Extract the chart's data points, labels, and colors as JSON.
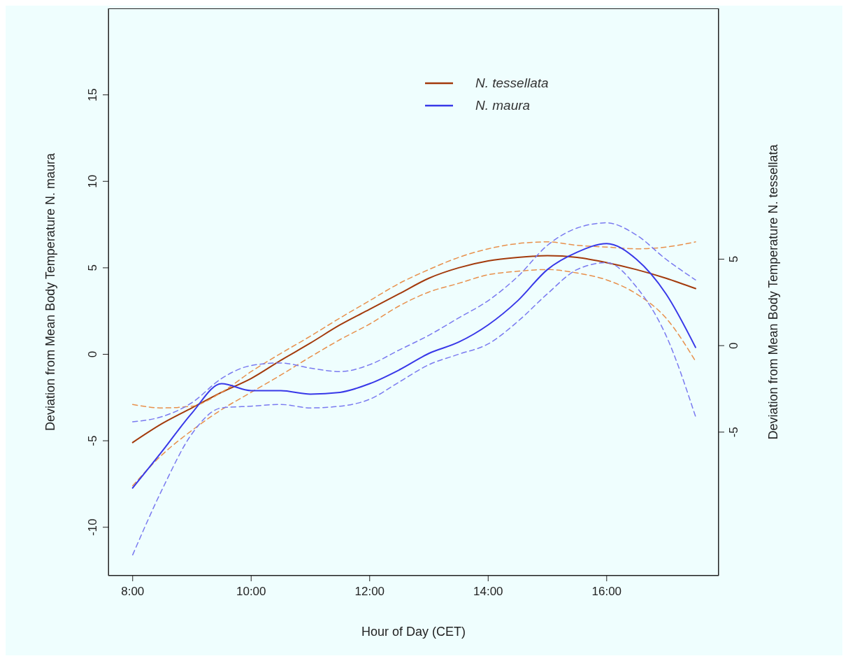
{
  "chart_data": {
    "type": "line",
    "xlabel": "Hour of Day (CET)",
    "ylabel": "Deviation from Mean Body Temperature N. maura",
    "y2label": "Deviation from Mean Body Temperature N. tessellata",
    "x": [
      8,
      8.5,
      9,
      9.5,
      10,
      10.5,
      11,
      11.5,
      12,
      12.5,
      13,
      13.5,
      14,
      14.5,
      15,
      15.5,
      16,
      16.5,
      17,
      17.5
    ],
    "series": [
      {
        "name": "N. tessellata",
        "color": "#a33a0c",
        "axis": "y2",
        "values": [
          -5.6,
          -4.5,
          -3.6,
          -2.7,
          -1.9,
          -0.85,
          0.15,
          1.2,
          2.1,
          3.0,
          3.9,
          4.5,
          4.9,
          5.1,
          5.2,
          5.1,
          4.8,
          4.4,
          3.9,
          3.3
        ]
      },
      {
        "color": "#e8904c",
        "axis": "y2",
        "line_style": "dashed",
        "values": [
          -3.4,
          -3.6,
          -3.5,
          -2.7,
          -1.5,
          -0.45,
          0.55,
          1.6,
          2.6,
          3.6,
          4.4,
          5.1,
          5.6,
          5.9,
          6.0,
          5.8,
          5.7,
          5.6,
          5.7,
          6.0
        ]
      },
      {
        "color": "#e8904c",
        "axis": "y2",
        "line_style": "dashed",
        "values": [
          -8.1,
          -6.3,
          -4.9,
          -3.7,
          -2.7,
          -1.7,
          -0.65,
          0.35,
          1.25,
          2.3,
          3.1,
          3.6,
          4.1,
          4.3,
          4.4,
          4.2,
          3.8,
          3.0,
          1.6,
          -0.9
        ]
      },
      {
        "name": "N. maura",
        "color": "#3838e8",
        "values": [
          -7.73,
          -5.6,
          -3.4,
          -1.7,
          -2.1,
          -2.1,
          -2.3,
          -2.2,
          -1.7,
          -0.9,
          0.05,
          0.7,
          1.7,
          3.1,
          4.9,
          5.9,
          6.4,
          5.5,
          3.5,
          0.4
        ]
      },
      {
        "color": "#7a7af0",
        "line_style": "dashed",
        "values": [
          -3.9,
          -3.6,
          -2.8,
          -1.4,
          -0.65,
          -0.5,
          -0.8,
          -1.0,
          -0.6,
          0.25,
          1.1,
          2.1,
          3.1,
          4.5,
          6.3,
          7.3,
          7.6,
          6.9,
          5.5,
          4.3
        ]
      },
      {
        "color": "#7a7af0",
        "line_style": "dashed",
        "values": [
          -11.6,
          -7.8,
          -4.6,
          -3.1,
          -3.0,
          -2.9,
          -3.1,
          -3.0,
          -2.6,
          -1.6,
          -0.6,
          0,
          0.6,
          1.9,
          3.5,
          4.9,
          5.3,
          3.9,
          1.1,
          -3.6
        ]
      }
    ],
    "xlim": [
      7.59,
      17.89
    ],
    "xticks": [
      {
        "value": 8,
        "label": "8:00"
      },
      {
        "value": 10,
        "label": "10:00"
      },
      {
        "value": 12,
        "label": "12:00"
      },
      {
        "value": 14,
        "label": "14:00"
      },
      {
        "value": 16,
        "label": "16:00"
      }
    ],
    "ylim": [
      -12.8,
      20
    ],
    "yticks": [
      -10,
      -5,
      0,
      5,
      10,
      15
    ],
    "y2lim": [
      -13.3,
      19.5
    ],
    "y2ticks": [
      -5,
      0,
      5
    ],
    "grid": false,
    "marker": "none",
    "legend": "top right",
    "line_style": "solid"
  }
}
